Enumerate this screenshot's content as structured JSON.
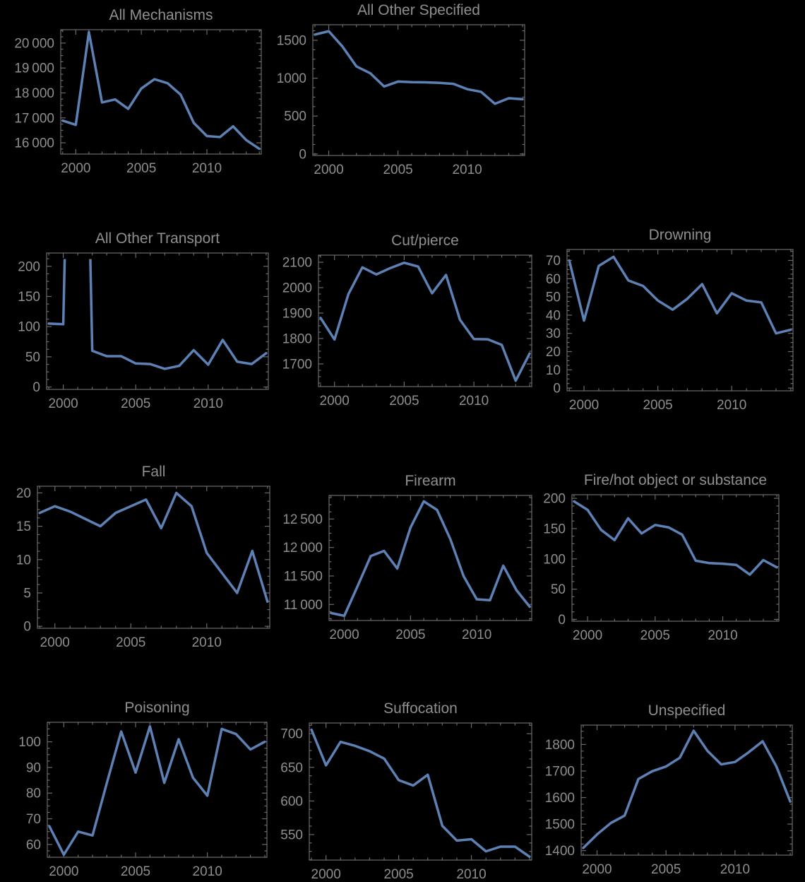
{
  "figure": {
    "background": "#000000",
    "line_color": "#5E81B5",
    "frame_color": "#6a6a6a",
    "label_color": "#8e8e8e",
    "title_color": "#8f8f8f"
  },
  "chart_data": [
    {
      "type": "line",
      "title": "All Mechanisms",
      "x": [
        1999,
        2000,
        2001,
        2002,
        2003,
        2004,
        2005,
        2006,
        2007,
        2008,
        2009,
        2010,
        2011,
        2012,
        2013,
        2014
      ],
      "values": [
        16890,
        16720,
        20440,
        17620,
        17740,
        17360,
        18180,
        18550,
        18390,
        17930,
        16800,
        16270,
        16230,
        16660,
        16110,
        15760
      ],
      "xlim": [
        1998.85,
        2014.15
      ],
      "ylim": [
        15548,
        20537
      ],
      "xticks": [
        {
          "v": 2000,
          "label": "2000"
        },
        {
          "v": 2005,
          "label": "2005"
        },
        {
          "v": 2010,
          "label": "2010"
        }
      ],
      "x_minor_step": 1,
      "yticks": [
        {
          "v": 16000,
          "label": "16 000"
        },
        {
          "v": 17000,
          "label": "17 000"
        },
        {
          "v": 18000,
          "label": "18 000"
        },
        {
          "v": 19000,
          "label": "19 000"
        },
        {
          "v": 20000,
          "label": "20 000"
        }
      ],
      "y_minor_step": 250,
      "grid": false,
      "legend": null,
      "clip_max": null
    },
    {
      "type": "line",
      "title": "All Other Specified",
      "x": [
        1999,
        2000,
        2001,
        2002,
        2003,
        2004,
        2005,
        2006,
        2007,
        2008,
        2009,
        2010,
        2011,
        2012,
        2013,
        2014
      ],
      "values": [
        1575,
        1620,
        1415,
        1155,
        1065,
        890,
        955,
        948,
        945,
        938,
        925,
        855,
        820,
        662,
        735,
        722
      ],
      "xlim": [
        1998.85,
        2014.15
      ],
      "ylim": [
        -20,
        1705
      ],
      "xticks": [
        {
          "v": 2000,
          "label": "2000"
        },
        {
          "v": 2005,
          "label": "2005"
        },
        {
          "v": 2010,
          "label": "2010"
        }
      ],
      "x_minor_step": 1,
      "yticks": [
        {
          "v": 0,
          "label": "0"
        },
        {
          "v": 500,
          "label": "500"
        },
        {
          "v": 1000,
          "label": "1000"
        },
        {
          "v": 1500,
          "label": "1500"
        }
      ],
      "y_minor_step": 125,
      "grid": false,
      "legend": null,
      "clip_max": null
    },
    {
      "type": "line",
      "title": "All Other Transport",
      "x": [
        1999,
        2000,
        2001,
        2002,
        2003,
        2004,
        2005,
        2006,
        2007,
        2008,
        2009,
        2010,
        2011,
        2012,
        2013,
        2014
      ],
      "values": [
        105,
        104,
        1200,
        60,
        51,
        51,
        39,
        38,
        30,
        35,
        61,
        37,
        78,
        42,
        38,
        56
      ],
      "xlim": [
        1998.85,
        2014.15
      ],
      "ylim": [
        -4,
        222
      ],
      "xticks": [
        {
          "v": 2000,
          "label": "2000"
        },
        {
          "v": 2005,
          "label": "2005"
        },
        {
          "v": 2010,
          "label": "2010"
        }
      ],
      "x_minor_step": 1,
      "yticks": [
        {
          "v": 0,
          "label": "0"
        },
        {
          "v": 50,
          "label": "50"
        },
        {
          "v": 100,
          "label": "100"
        },
        {
          "v": 150,
          "label": "150"
        },
        {
          "v": 200,
          "label": "200"
        }
      ],
      "y_minor_step": 12.5,
      "grid": false,
      "legend": null,
      "clip_max": 212
    },
    {
      "type": "line",
      "title": "Cut/pierce",
      "x": [
        1999,
        2000,
        2001,
        2002,
        2003,
        2004,
        2005,
        2006,
        2007,
        2008,
        2009,
        2010,
        2011,
        2012,
        2013,
        2014
      ],
      "values": [
        1881,
        1796,
        1975,
        2080,
        2052,
        2077,
        2098,
        2083,
        1978,
        2050,
        1874,
        1798,
        1797,
        1775,
        1634,
        1741
      ],
      "xlim": [
        1998.85,
        2014.15
      ],
      "ylim": [
        1611,
        2128
      ],
      "xticks": [
        {
          "v": 2000,
          "label": "2000"
        },
        {
          "v": 2005,
          "label": "2005"
        },
        {
          "v": 2010,
          "label": "2010"
        }
      ],
      "x_minor_step": 1,
      "yticks": [
        {
          "v": 1700,
          "label": "1700"
        },
        {
          "v": 1800,
          "label": "1800"
        },
        {
          "v": 1900,
          "label": "1900"
        },
        {
          "v": 2000,
          "label": "2000"
        },
        {
          "v": 2100,
          "label": "2100"
        }
      ],
      "y_minor_step": 25,
      "grid": false,
      "legend": null,
      "clip_max": null
    },
    {
      "type": "line",
      "title": "Drowning",
      "x": [
        1999,
        2000,
        2001,
        2002,
        2003,
        2004,
        2005,
        2006,
        2007,
        2008,
        2009,
        2010,
        2011,
        2012,
        2013,
        2014
      ],
      "values": [
        70,
        37,
        67,
        72,
        59,
        56,
        48,
        43,
        49,
        57,
        41,
        52,
        48,
        47,
        30,
        32
      ],
      "xlim": [
        1998.85,
        2014.15
      ],
      "ylim": [
        -1.5,
        76
      ],
      "xticks": [
        {
          "v": 2000,
          "label": "2000"
        },
        {
          "v": 2005,
          "label": "2005"
        },
        {
          "v": 2010,
          "label": "2010"
        }
      ],
      "x_minor_step": 1,
      "yticks": [
        {
          "v": 0,
          "label": "0"
        },
        {
          "v": 10,
          "label": "10"
        },
        {
          "v": 20,
          "label": "20"
        },
        {
          "v": 30,
          "label": "30"
        },
        {
          "v": 40,
          "label": "40"
        },
        {
          "v": 50,
          "label": "50"
        },
        {
          "v": 60,
          "label": "60"
        },
        {
          "v": 70,
          "label": "70"
        }
      ],
      "y_minor_step": 2.5,
      "grid": false,
      "legend": null,
      "clip_max": null
    },
    {
      "type": "line",
      "title": "Fall",
      "x": [
        1999,
        2000,
        2001,
        2002,
        2003,
        2004,
        2005,
        2006,
        2007,
        2008,
        2009,
        2010,
        2011,
        2012,
        2013,
        2014
      ],
      "values": [
        17,
        18,
        17.2,
        16.1,
        15,
        17,
        18,
        19,
        14.7,
        20,
        18,
        11,
        8,
        5,
        11.3,
        3.7
      ],
      "xlim": [
        1998.85,
        2014.15
      ],
      "ylim": [
        -0.3,
        21
      ],
      "xticks": [
        {
          "v": 2000,
          "label": "2000"
        },
        {
          "v": 2005,
          "label": "2005"
        },
        {
          "v": 2010,
          "label": "2010"
        }
      ],
      "x_minor_step": 1,
      "yticks": [
        {
          "v": 0,
          "label": "0"
        },
        {
          "v": 5,
          "label": "5"
        },
        {
          "v": 10,
          "label": "10"
        },
        {
          "v": 15,
          "label": "15"
        },
        {
          "v": 20,
          "label": "20"
        }
      ],
      "y_minor_step": 1.25,
      "grid": false,
      "legend": null,
      "clip_max": null
    },
    {
      "type": "line",
      "title": "Firearm",
      "x": [
        1999,
        2000,
        2001,
        2002,
        2003,
        2004,
        2005,
        2006,
        2007,
        2008,
        2009,
        2010,
        2011,
        2012,
        2013,
        2014
      ],
      "values": [
        10850,
        10800,
        11320,
        11850,
        11940,
        11630,
        12350,
        12810,
        12660,
        12150,
        11500,
        11090,
        11075,
        11680,
        11250,
        10960
      ],
      "xlim": [
        1998.85,
        2014.15
      ],
      "ylim": [
        10718,
        12914
      ],
      "xticks": [
        {
          "v": 2000,
          "label": "2000"
        },
        {
          "v": 2005,
          "label": "2005"
        },
        {
          "v": 2010,
          "label": "2010"
        }
      ],
      "x_minor_step": 1,
      "yticks": [
        {
          "v": 11000,
          "label": "11 000"
        },
        {
          "v": 11500,
          "label": "11 500"
        },
        {
          "v": 12000,
          "label": "12 000"
        },
        {
          "v": 12500,
          "label": "12 500"
        }
      ],
      "y_minor_step": 125,
      "grid": false,
      "legend": null,
      "clip_max": null
    },
    {
      "type": "line",
      "title": "Fire/hot object or substance",
      "x": [
        1999,
        2000,
        2001,
        2002,
        2003,
        2004,
        2005,
        2006,
        2007,
        2008,
        2009,
        2010,
        2011,
        2012,
        2013,
        2014
      ],
      "values": [
        195,
        181,
        148,
        131,
        167,
        142,
        156,
        152,
        140,
        97,
        93,
        92,
        90,
        74,
        98,
        86
      ],
      "xlim": [
        1998.85,
        2014.15
      ],
      "ylim": [
        -3,
        206
      ],
      "xticks": [
        {
          "v": 2000,
          "label": "2000"
        },
        {
          "v": 2005,
          "label": "2005"
        },
        {
          "v": 2010,
          "label": "2010"
        }
      ],
      "x_minor_step": 1,
      "yticks": [
        {
          "v": 0,
          "label": "0"
        },
        {
          "v": 50,
          "label": "50"
        },
        {
          "v": 100,
          "label": "100"
        },
        {
          "v": 150,
          "label": "150"
        },
        {
          "v": 200,
          "label": "200"
        }
      ],
      "y_minor_step": 12.5,
      "grid": false,
      "legend": null,
      "clip_max": null
    },
    {
      "type": "line",
      "title": "Poisoning",
      "x": [
        1999,
        2000,
        2001,
        2002,
        2003,
        2004,
        2005,
        2006,
        2007,
        2008,
        2009,
        2010,
        2011,
        2012,
        2013,
        2014
      ],
      "values": [
        67,
        56,
        65,
        63.5,
        84,
        104,
        88,
        106,
        84,
        101,
        86,
        79,
        105,
        103,
        97,
        100
      ],
      "xlim": [
        1998.85,
        2014.15
      ],
      "ylim": [
        55,
        107.6
      ],
      "xticks": [
        {
          "v": 2000,
          "label": "2000"
        },
        {
          "v": 2005,
          "label": "2005"
        },
        {
          "v": 2010,
          "label": "2010"
        }
      ],
      "x_minor_step": 1,
      "yticks": [
        {
          "v": 60,
          "label": "60"
        },
        {
          "v": 70,
          "label": "70"
        },
        {
          "v": 80,
          "label": "80"
        },
        {
          "v": 90,
          "label": "90"
        },
        {
          "v": 100,
          "label": "100"
        }
      ],
      "y_minor_step": 2.5,
      "grid": false,
      "legend": null,
      "clip_max": null
    },
    {
      "type": "line",
      "title": "Suffocation",
      "x": [
        1999,
        2000,
        2001,
        2002,
        2003,
        2004,
        2005,
        2006,
        2007,
        2008,
        2009,
        2010,
        2011,
        2012,
        2013,
        2014
      ],
      "values": [
        706,
        653,
        688,
        682,
        674,
        663,
        631,
        623,
        639,
        563,
        541,
        543,
        525,
        532,
        532,
        517
      ],
      "xlim": [
        1998.85,
        2014.15
      ],
      "ylim": [
        512,
        716
      ],
      "xticks": [
        {
          "v": 2000,
          "label": "2000"
        },
        {
          "v": 2005,
          "label": "2005"
        },
        {
          "v": 2010,
          "label": "2010"
        }
      ],
      "x_minor_step": 1,
      "yticks": [
        {
          "v": 550,
          "label": "550"
        },
        {
          "v": 600,
          "label": "600"
        },
        {
          "v": 650,
          "label": "650"
        },
        {
          "v": 700,
          "label": "700"
        }
      ],
      "y_minor_step": 12.5,
      "grid": false,
      "legend": null,
      "clip_max": null
    },
    {
      "type": "line",
      "title": "Unspecified",
      "x": [
        1999,
        2000,
        2001,
        2002,
        2003,
        2004,
        2005,
        2006,
        2007,
        2008,
        2009,
        2010,
        2011,
        2012,
        2013,
        2014
      ],
      "values": [
        1410,
        1461,
        1504,
        1532,
        1670,
        1699,
        1717,
        1750,
        1852,
        1776,
        1725,
        1734,
        1771,
        1812,
        1717,
        1585
      ],
      "xlim": [
        1998.85,
        2014.15
      ],
      "ylim": [
        1383,
        1873
      ],
      "xticks": [
        {
          "v": 2000,
          "label": "2000"
        },
        {
          "v": 2005,
          "label": "2005"
        },
        {
          "v": 2010,
          "label": "2010"
        }
      ],
      "x_minor_step": 1,
      "yticks": [
        {
          "v": 1400,
          "label": "1400"
        },
        {
          "v": 1500,
          "label": "1500"
        },
        {
          "v": 1600,
          "label": "1600"
        },
        {
          "v": 1700,
          "label": "1700"
        },
        {
          "v": 1800,
          "label": "1800"
        }
      ],
      "y_minor_step": 25,
      "grid": false,
      "legend": null,
      "clip_max": null
    }
  ]
}
